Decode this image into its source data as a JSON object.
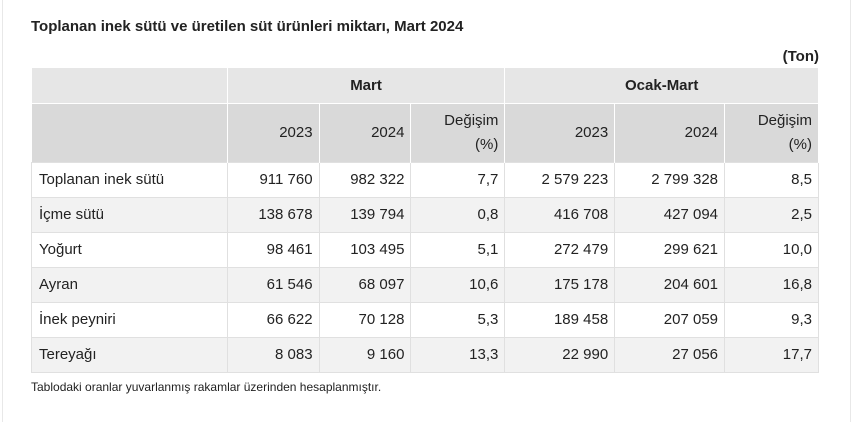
{
  "title": "Toplanan inek sütü ve üretilen süt ürünleri miktarı, Mart 2024",
  "unit": "(Ton)",
  "table": {
    "group_headers": [
      "Mart",
      "Ocak-Mart"
    ],
    "sub_headers": [
      "2023",
      "2024",
      "Değişim (%)",
      "2023",
      "2024",
      "Değişim (%)"
    ],
    "rows": [
      {
        "label": "Toplanan inek sütü",
        "values": [
          "911 760",
          "982 322",
          "7,7",
          "2 579 223",
          "2 799 328",
          "8,5"
        ]
      },
      {
        "label": "İçme sütü",
        "values": [
          "138 678",
          "139 794",
          "0,8",
          "416 708",
          "427 094",
          "2,5"
        ]
      },
      {
        "label": "Yoğurt",
        "values": [
          "98 461",
          "103 495",
          "5,1",
          "272 479",
          "299 621",
          "10,0"
        ]
      },
      {
        "label": "Ayran",
        "values": [
          "61 546",
          "68 097",
          "10,6",
          "175 178",
          "204 601",
          "16,8"
        ]
      },
      {
        "label": "İnek peyniri",
        "values": [
          "66 622",
          "70 128",
          "5,3",
          "189 458",
          "207 059",
          "9,3"
        ]
      },
      {
        "label": "Tereyağı",
        "values": [
          "8 083",
          "9 160",
          "13,3",
          "22 990",
          "27 056",
          "17,7"
        ]
      }
    ]
  },
  "note": "Tablodaki oranlar yuvarlanmış rakamlar üzerinden hesaplanmıştır."
}
